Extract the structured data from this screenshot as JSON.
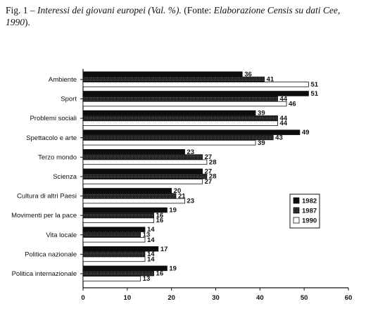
{
  "caption": {
    "prefix": "Fig. 1 – ",
    "title": "Interessi dei giovani europei (Val. %).",
    "source_open": " (Fonte: ",
    "source": "Elaborazione Censis su dati Cee, 1990",
    "source_close": ")."
  },
  "chart_data": {
    "type": "bar",
    "orientation": "horizontal",
    "categories": [
      "Ambiente",
      "Sport",
      "Problemi sociali",
      "Spettacolo e arte",
      "Terzo mondo",
      "Scienza",
      "Cultura di altri Paesi",
      "Movimenti per la pace",
      "Vita locale",
      "Politica nazionale",
      "Politica internazionale"
    ],
    "series": [
      {
        "name": "1982",
        "color": "#111111",
        "values": [
          36,
          51,
          39,
          49,
          23,
          27,
          20,
          19,
          14,
          17,
          19
        ]
      },
      {
        "name": "1987",
        "color": "#2b2b2b",
        "values": [
          41,
          44,
          44,
          43,
          27,
          28,
          21,
          16,
          13,
          14,
          16
        ]
      },
      {
        "name": "1990",
        "color": "#ffffff",
        "values": [
          51,
          46,
          44,
          39,
          28,
          27,
          23,
          16,
          14,
          14,
          13
        ]
      }
    ],
    "xlim": [
      0,
      60
    ],
    "xticks": [
      0,
      10,
      20,
      30,
      40,
      50,
      60
    ],
    "legend_position": "right",
    "grid": false
  }
}
